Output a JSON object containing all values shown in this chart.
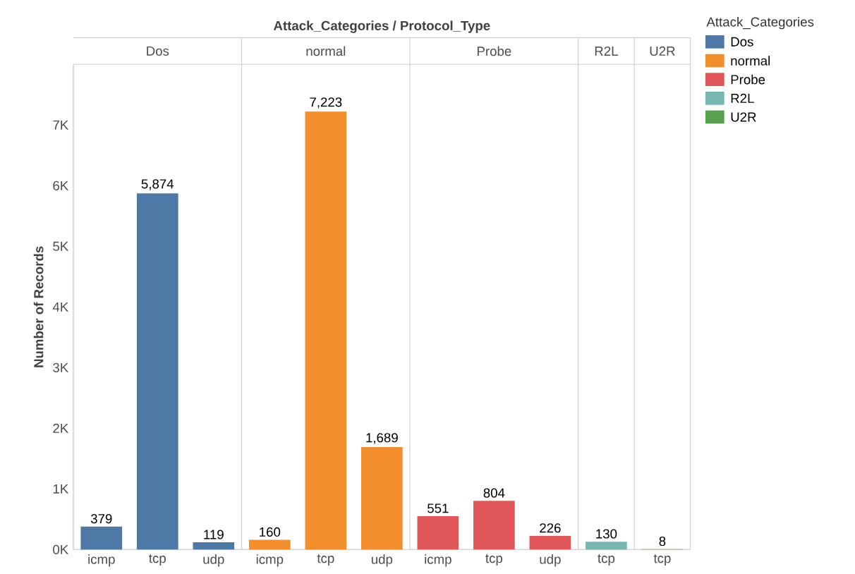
{
  "chart_data": {
    "type": "bar",
    "title": "Attack_Categories / Protocol_Type",
    "ylabel": "Number of Records",
    "legend_title": "Attack_Categories",
    "legend": "right",
    "categories": [
      "icmp",
      "tcp",
      "udp",
      "icmp",
      "tcp",
      "udp",
      "icmp",
      "tcp",
      "udp",
      "tcp",
      "tcp"
    ],
    "series": [
      {
        "name": "Dos",
        "color": "#4e79a7",
        "values": [
          379,
          5874,
          119,
          null,
          null,
          null,
          null,
          null,
          null,
          null,
          null
        ],
        "value_labels": [
          "379",
          "5,874",
          "119",
          null,
          null,
          null,
          null,
          null,
          null,
          null,
          null
        ]
      },
      {
        "name": "normal",
        "color": "#f28e2b",
        "values": [
          null,
          null,
          null,
          160,
          7223,
          1689,
          null,
          null,
          null,
          null,
          null
        ],
        "value_labels": [
          null,
          null,
          null,
          "160",
          "7,223",
          "1,689",
          null,
          null,
          null,
          null,
          null
        ]
      },
      {
        "name": "Probe",
        "color": "#e15759",
        "values": [
          null,
          null,
          null,
          null,
          null,
          null,
          551,
          804,
          226,
          null,
          null
        ],
        "value_labels": [
          null,
          null,
          null,
          null,
          null,
          null,
          "551",
          "804",
          "226",
          null,
          null
        ]
      },
      {
        "name": "R2L",
        "color": "#76b7b2",
        "values": [
          null,
          null,
          null,
          null,
          null,
          null,
          null,
          null,
          null,
          130,
          null
        ],
        "value_labels": [
          null,
          null,
          null,
          null,
          null,
          null,
          null,
          null,
          null,
          "130",
          null
        ]
      },
      {
        "name": "U2R",
        "color": "#59a14f",
        "values": [
          null,
          null,
          null,
          null,
          null,
          null,
          null,
          null,
          null,
          null,
          8
        ],
        "value_labels": [
          null,
          null,
          null,
          null,
          null,
          null,
          null,
          null,
          null,
          null,
          "8"
        ]
      }
    ],
    "ylim": [
      0,
      8000
    ],
    "yticks": [
      {
        "value": 0,
        "label": "0K"
      },
      {
        "value": 1000,
        "label": "1K"
      },
      {
        "value": 2000,
        "label": "2K"
      },
      {
        "value": 3000,
        "label": "3K"
      },
      {
        "value": 4000,
        "label": "4K"
      },
      {
        "value": 5000,
        "label": "5K"
      },
      {
        "value": 6000,
        "label": "6K"
      },
      {
        "value": 7000,
        "label": "7K"
      }
    ]
  }
}
